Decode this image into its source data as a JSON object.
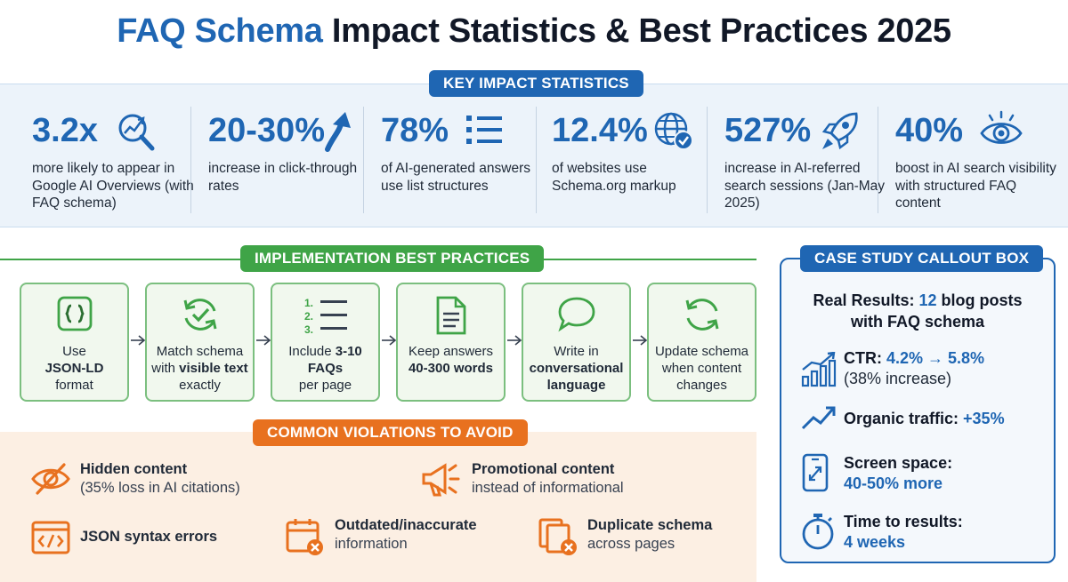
{
  "title": {
    "accent": "FAQ Schema",
    "rest": " Impact Statistics & Best Practices 2025"
  },
  "stats": {
    "header": "KEY IMPACT STATISTICS",
    "items": [
      {
        "value": "3.2x",
        "desc": "more likely to appear in Google AI Overviews (with FAQ schema)",
        "icon": "magnifier-chart-icon"
      },
      {
        "value": "20-30%",
        "desc": "increase in click-through rates",
        "icon": "arrow-up-icon"
      },
      {
        "value": "78%",
        "desc": "of AI-generated answers use list structures",
        "icon": "list-icon"
      },
      {
        "value": "12.4%",
        "desc": "of websites use Schema.org markup",
        "icon": "globe-check-icon"
      },
      {
        "value": "527%",
        "desc": "increase in AI-referred search sessions (Jan-May 2025)",
        "icon": "rocket-icon"
      },
      {
        "value": "40%",
        "desc": "boost in AI search visibility with structured FAQ content",
        "icon": "eye-icon"
      }
    ]
  },
  "implementation": {
    "header": "IMPLEMENTATION BEST PRACTICES",
    "steps": [
      {
        "pre": "Use ",
        "bold": "JSON-LD",
        "post": " format"
      },
      {
        "pre": "Match schema with ",
        "bold": "visible text",
        "post": " exactly"
      },
      {
        "pre": "Include ",
        "bold": "3-10 FAQs",
        "post": " per page"
      },
      {
        "pre": "Keep answers ",
        "bold": "40-300 words",
        "post": ""
      },
      {
        "pre": "Write in ",
        "bold": "conversational language",
        "post": ""
      },
      {
        "pre": "Update schema when content changes",
        "bold": "",
        "post": ""
      }
    ],
    "numbered_list": [
      "1.",
      "2.",
      "3."
    ]
  },
  "violations": {
    "header": "COMMON VIOLATIONS TO AVOID",
    "items": [
      {
        "title": "Hidden content",
        "desc": "(35% loss in AI citations)",
        "icon": "eye-slash-icon"
      },
      {
        "title": "Promotional content",
        "desc": "instead of informational",
        "icon": "megaphone-icon"
      },
      {
        "title": "JSON syntax errors",
        "desc": "",
        "icon": "code-window-icon"
      },
      {
        "title": "Outdated/inaccurate",
        "desc": "information",
        "icon": "calendar-x-icon"
      },
      {
        "title": "Duplicate schema",
        "desc": "across pages",
        "icon": "duplicate-x-icon"
      }
    ]
  },
  "case_study": {
    "header": "CASE STUDY CALLOUT BOX",
    "heading_pre": "Real Results: ",
    "heading_num": "12",
    "heading_post": " blog posts",
    "heading_line2": "with FAQ schema",
    "ctr": {
      "label": "CTR: ",
      "value": "4.2% → 5.8%",
      "sub": "(38% increase)"
    },
    "traffic": {
      "label": "Organic traffic: ",
      "value": "+35%"
    },
    "screen": {
      "label": "Screen space:",
      "sub": "40-50% more"
    },
    "time": {
      "label": "Time to results:",
      "sub": "4 weeks"
    }
  },
  "colors": {
    "blue": "#1f66b3",
    "green": "#3fa447",
    "orange": "#e8711f"
  }
}
